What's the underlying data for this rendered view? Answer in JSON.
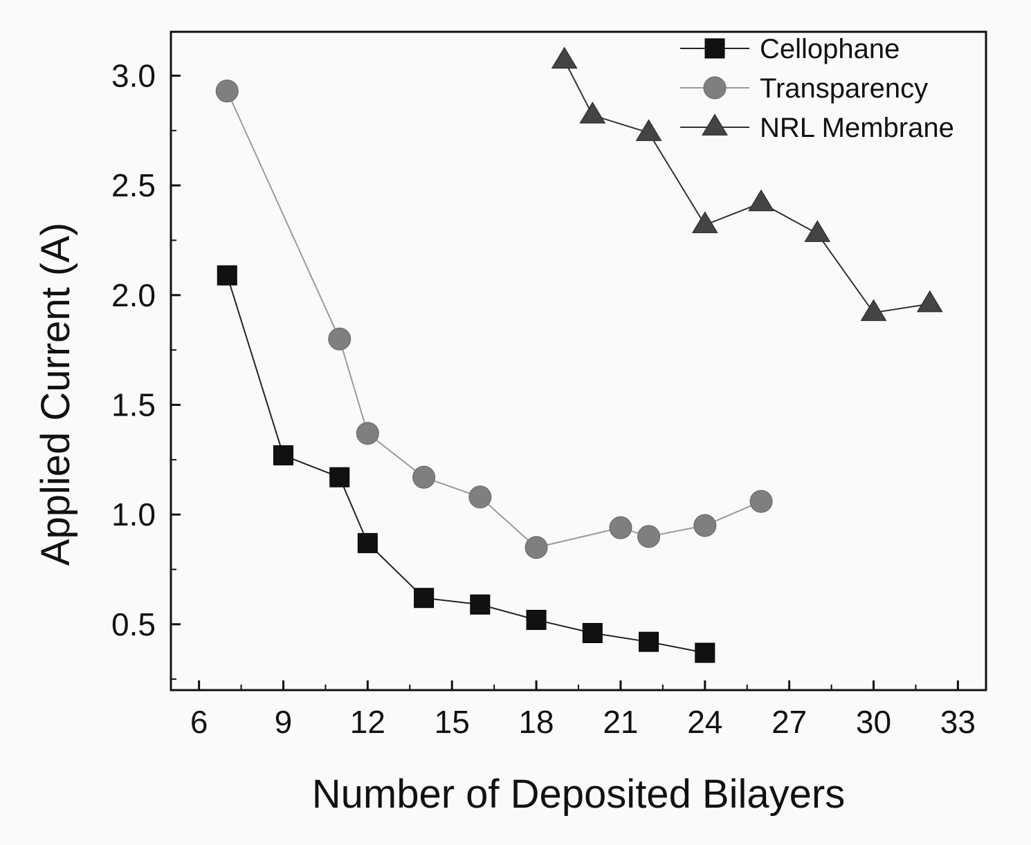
{
  "chart_data": {
    "type": "line",
    "title": "",
    "xlabel": "Number of Deposited Bilayers",
    "ylabel": "Applied Current (A)",
    "xlim": [
      5,
      34
    ],
    "ylim": [
      0.2,
      3.2
    ],
    "xticks": [
      "6",
      "9",
      "12",
      "15",
      "18",
      "21",
      "24",
      "27",
      "30",
      "33"
    ],
    "yticks": [
      "0.5",
      "1.0",
      "1.5",
      "2.0",
      "2.5",
      "3.0"
    ],
    "grid": false,
    "legend_position": "top-right",
    "series": [
      {
        "name": "Cellophane",
        "marker": "square",
        "color": "#111111",
        "line_color": "#222222",
        "x": [
          7,
          9,
          11,
          12,
          14,
          16,
          18,
          20,
          22,
          24
        ],
        "y": [
          2.09,
          1.27,
          1.17,
          0.87,
          0.62,
          0.59,
          0.52,
          0.46,
          0.42,
          0.37
        ]
      },
      {
        "name": "Transparency",
        "marker": "circle",
        "color": "#7f7f7f",
        "line_color": "#9a9a9a",
        "x": [
          7,
          11,
          12,
          14,
          16,
          18,
          21,
          22,
          24,
          26
        ],
        "y": [
          2.93,
          1.8,
          1.37,
          1.17,
          1.08,
          0.85,
          0.94,
          0.9,
          0.95,
          1.06
        ]
      },
      {
        "name": "NRL Membrane",
        "marker": "triangle",
        "color": "#444444",
        "line_color": "#333333",
        "x": [
          19,
          20,
          22,
          24,
          26,
          28,
          30,
          32
        ],
        "y": [
          3.07,
          2.82,
          2.74,
          2.32,
          2.42,
          2.28,
          1.92,
          1.96
        ]
      }
    ]
  }
}
